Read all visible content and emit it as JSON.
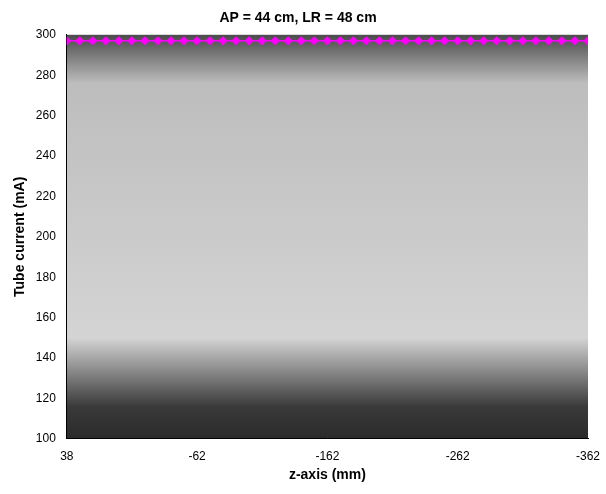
{
  "chart_data": {
    "type": "line",
    "title": "AP = 44 cm, LR = 48 cm",
    "x_label": "z-axis (mm)",
    "y_label": "Tube current (mA)",
    "x": [
      38,
      28,
      18,
      8,
      -2,
      -12,
      -22,
      -32,
      -42,
      -52,
      -62,
      -72,
      -82,
      -92,
      -102,
      -112,
      -122,
      -132,
      -142,
      -152,
      -162,
      -172,
      -182,
      -192,
      -202,
      -212,
      -222,
      -232,
      -242,
      -252,
      -262,
      -272,
      -282,
      -292,
      -302,
      -312,
      -322,
      -332,
      -342,
      -352,
      -362
    ],
    "values": [
      297,
      297,
      297,
      297,
      297,
      297,
      297,
      297,
      297,
      297,
      297,
      297,
      297,
      297,
      297,
      297,
      297,
      297,
      297,
      297,
      297,
      297,
      297,
      297,
      297,
      297,
      297,
      297,
      297,
      297,
      297,
      297,
      297,
      297,
      297,
      297,
      297,
      297,
      297,
      297,
      297
    ],
    "color": "#ff00ff",
    "marker": "diamond",
    "line_style": "solid",
    "xlim": [
      38,
      -362
    ],
    "xticks": [
      38,
      -62,
      -162,
      -262,
      -362
    ],
    "ylim": [
      100,
      300
    ],
    "yticks": [
      100,
      120,
      140,
      160,
      180,
      200,
      220,
      240,
      260,
      280,
      300
    ],
    "grid": false
  }
}
